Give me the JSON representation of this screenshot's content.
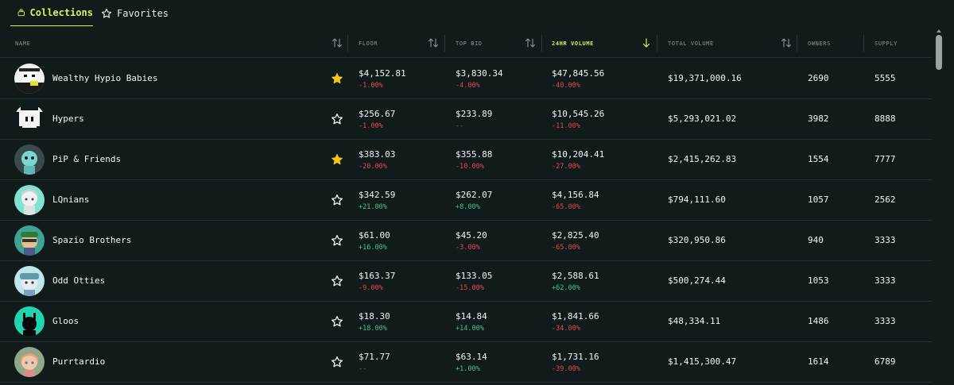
{
  "tabs": {
    "collections": "Collections",
    "favorites": "Favorites"
  },
  "columns": {
    "name": "NAME",
    "floor": "FLOOR",
    "top_bid": "TOP BID",
    "volume_24h": "24HR VOLUME",
    "total_volume": "TOTAL VOLUME",
    "owners": "OWNERS",
    "supply": "SUPPLY"
  },
  "colors": {
    "accent": "#d8f25a",
    "negative": "#e5484d",
    "positive": "#3ec68a",
    "star_filled": "#f5c518",
    "background": "#121b1c"
  },
  "rows": [
    {
      "name": "Wealthy Hypio Babies",
      "favorited": true,
      "floor": "$4,152.81",
      "floor_change": "-1.00%",
      "top_bid": "$3,830.34",
      "top_bid_change": "-4.00%",
      "volume_24h": "$47,845.56",
      "volume_24h_change": "-40.00%",
      "total_volume": "$19,371,000.16",
      "owners": "2690",
      "supply": "5555"
    },
    {
      "name": "Hypers",
      "favorited": false,
      "floor": "$256.67",
      "floor_change": "-1.00%",
      "top_bid": "$233.89",
      "top_bid_change": "--",
      "volume_24h": "$10,545.26",
      "volume_24h_change": "-11.00%",
      "total_volume": "$5,293,021.02",
      "owners": "3982",
      "supply": "8888"
    },
    {
      "name": "PiP & Friends",
      "favorited": true,
      "floor": "$383.03",
      "floor_change": "-20.00%",
      "top_bid": "$355.88",
      "top_bid_change": "-10.00%",
      "volume_24h": "$10,204.41",
      "volume_24h_change": "-27.00%",
      "total_volume": "$2,415,262.83",
      "owners": "1554",
      "supply": "7777"
    },
    {
      "name": "LQnians",
      "favorited": false,
      "floor": "$342.59",
      "floor_change": "+21.00%",
      "top_bid": "$262.07",
      "top_bid_change": "+8.00%",
      "volume_24h": "$4,156.84",
      "volume_24h_change": "-65.00%",
      "total_volume": "$794,111.60",
      "owners": "1057",
      "supply": "2562"
    },
    {
      "name": "Spazio Brothers",
      "favorited": false,
      "floor": "$61.00",
      "floor_change": "+16.00%",
      "top_bid": "$45.20",
      "top_bid_change": "-3.00%",
      "volume_24h": "$2,825.40",
      "volume_24h_change": "-65.00%",
      "total_volume": "$320,950.86",
      "owners": "940",
      "supply": "3333"
    },
    {
      "name": "Odd Otties",
      "favorited": false,
      "floor": "$163.37",
      "floor_change": "-9.00%",
      "top_bid": "$133.05",
      "top_bid_change": "-15.00%",
      "volume_24h": "$2,588.61",
      "volume_24h_change": "+62.00%",
      "total_volume": "$500,274.44",
      "owners": "1053",
      "supply": "3333"
    },
    {
      "name": "Gloos",
      "favorited": false,
      "floor": "$18.30",
      "floor_change": "+18.00%",
      "top_bid": "$14.84",
      "top_bid_change": "+14.00%",
      "volume_24h": "$1,841.66",
      "volume_24h_change": "-34.00%",
      "total_volume": "$48,334.11",
      "owners": "1486",
      "supply": "3333"
    },
    {
      "name": "Purrtardio",
      "favorited": false,
      "floor": "$71.77",
      "floor_change": "--",
      "top_bid": "$63.14",
      "top_bid_change": "+1.00%",
      "volume_24h": "$1,731.16",
      "volume_24h_change": "-39.00%",
      "total_volume": "$1,415,300.47",
      "owners": "1614",
      "supply": "6789"
    }
  ]
}
